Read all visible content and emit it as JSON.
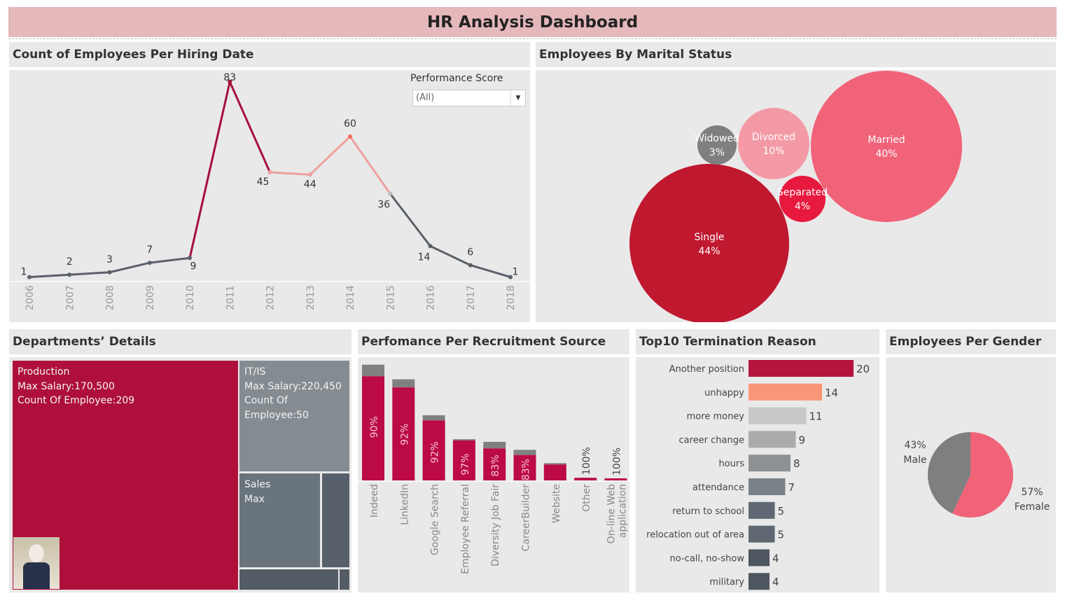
{
  "title": "HR Analysis Dashboard",
  "hiring": {
    "header": "Count of Employees Per Hiring Date",
    "filter_label": "Performance Score",
    "filter_value": "(All)",
    "chart_data": {
      "type": "line",
      "x": [
        "2006",
        "2007",
        "2008",
        "2009",
        "2010",
        "2011",
        "2012",
        "2013",
        "2014",
        "2015",
        "2016",
        "2017",
        "2018"
      ],
      "values": [
        1,
        2,
        3,
        7,
        9,
        83,
        45,
        44,
        60,
        36,
        14,
        6,
        1
      ],
      "xlabel": "",
      "ylabel": ""
    }
  },
  "marital": {
    "header": "Employees By Marital Status",
    "chart_data": {
      "type": "bubble",
      "items": [
        {
          "label": "Married",
          "pct": "40%",
          "value": 40,
          "color": "#f06379"
        },
        {
          "label": "Single",
          "pct": "44%",
          "value": 44,
          "color": "#c0182f"
        },
        {
          "label": "Divorced",
          "pct": "10%",
          "value": 10,
          "color": "#f39aa6"
        },
        {
          "label": "Widowed",
          "pct": "3%",
          "value": 3,
          "color": "#7f7f7f"
        },
        {
          "label": "Separated",
          "pct": "4%",
          "value": 4,
          "color": "#e8193e"
        }
      ]
    }
  },
  "departments": {
    "header": "Departments’ Details",
    "tiles": [
      {
        "lines": [
          "Production",
          "Max Salary:170,500",
          "Count Of Employee:209"
        ],
        "color": "#ae103b"
      },
      {
        "lines": [
          "IT/IS",
          "Max Salary:220,450",
          "Count Of",
          "Employee:50"
        ],
        "color": "#858c91"
      },
      {
        "lines": [
          "Sales",
          "Max"
        ],
        "color": "#6a747d"
      }
    ]
  },
  "recruitment": {
    "header": "Perfomance Per Recruitment Source",
    "chart_data": {
      "type": "stacked-bar",
      "categories": [
        "Indeed",
        "LinkedIn",
        "Google Search",
        "Employee Referral",
        "Diversity Job Fair",
        "CareerBuilder",
        "Website",
        "Other",
        "On-line Web application"
      ],
      "totals": [
        87,
        76,
        49,
        31,
        29,
        23,
        13,
        2,
        1
      ],
      "share": [
        0.9,
        0.92,
        0.92,
        0.97,
        0.83,
        0.83,
        0.92,
        1.0,
        1.0
      ],
      "labels": [
        "90%",
        "92%",
        "92%",
        "97%",
        "83%",
        "83%",
        "",
        "100%",
        "100%"
      ],
      "colors": {
        "main": "#bb0a45",
        "rest": "#808080"
      }
    }
  },
  "termination": {
    "header": "Top10 Termination Reason",
    "chart_data": {
      "type": "bar",
      "categories": [
        "Another position",
        "unhappy",
        "more money",
        "career change",
        "hours",
        "attendance",
        "return to school",
        "relocation out of area",
        "no-call, no-show",
        "military"
      ],
      "values": [
        20,
        14,
        11,
        9,
        8,
        7,
        5,
        5,
        4,
        4
      ],
      "colors": [
        "#b5143f",
        "#f99578",
        "#c8c8c8",
        "#a9abad",
        "#8e9194",
        "#7a8189",
        "#5f6872",
        "#5f6872",
        "#4e5660",
        "#4e5660"
      ]
    }
  },
  "gender": {
    "header": "Employees Per Gender",
    "chart_data": {
      "type": "pie",
      "slices": [
        {
          "label": "Female",
          "pct": "57%",
          "value": 57,
          "color": "#f06379"
        },
        {
          "label": "Male",
          "pct": "43%",
          "value": 43,
          "color": "#7f7f7f"
        }
      ]
    }
  }
}
